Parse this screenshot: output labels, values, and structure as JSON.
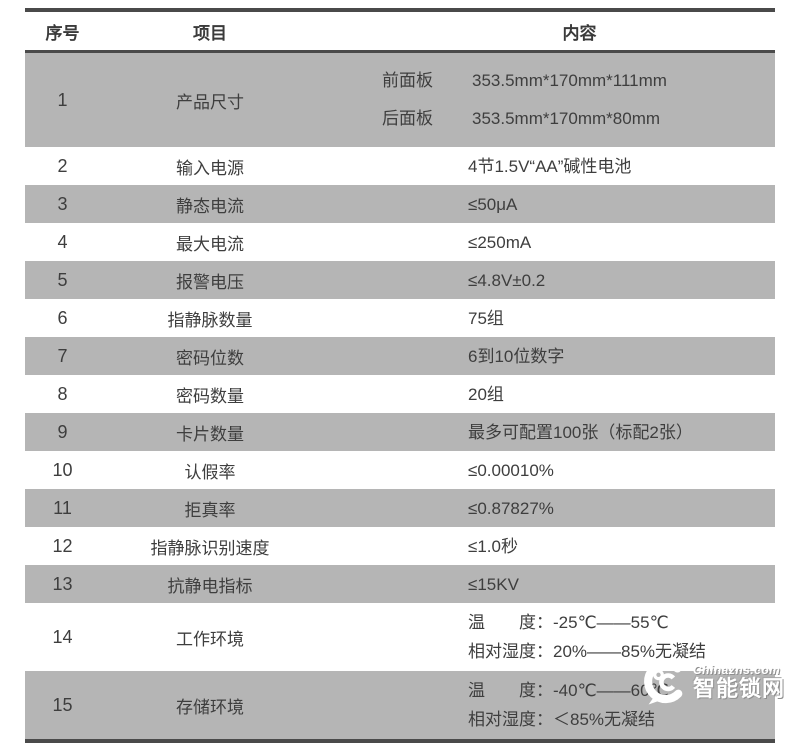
{
  "colors": {
    "stripe_gray": "#b5b5b5",
    "border_dark": "#4a4a4a",
    "text": "#3e3e3e",
    "watermark": "#ffffff"
  },
  "table": {
    "headers": [
      {
        "label": "序号"
      },
      {
        "label": "项目"
      },
      {
        "label": "内容"
      }
    ],
    "rows": [
      {
        "no": "1",
        "item": "产品尺寸",
        "lines": [
          {
            "label": "前面板",
            "value": "353.5mm*170mm*111mm"
          },
          {
            "label": "后面板",
            "value": "353.5mm*170mm*80mm"
          }
        ]
      },
      {
        "no": "2",
        "item": "输入电源",
        "lines": [
          {
            "value": "4节1.5V“AA”碱性电池"
          }
        ]
      },
      {
        "no": "3",
        "item": "静态电流",
        "lines": [
          {
            "value": "≤50μA"
          }
        ]
      },
      {
        "no": "4",
        "item": "最大电流",
        "lines": [
          {
            "value": "≤250mA"
          }
        ]
      },
      {
        "no": "5",
        "item": "报警电压",
        "lines": [
          {
            "value": "≤4.8V±0.2"
          }
        ]
      },
      {
        "no": "6",
        "item": "指静脉数量",
        "lines": [
          {
            "value": "75组"
          }
        ]
      },
      {
        "no": "7",
        "item": "密码位数",
        "lines": [
          {
            "value": "6到10位数字"
          }
        ]
      },
      {
        "no": "8",
        "item": "密码数量",
        "lines": [
          {
            "value": "20组"
          }
        ]
      },
      {
        "no": "9",
        "item": "卡片数量",
        "lines": [
          {
            "value": "最多可配置100张（标配2张）"
          }
        ]
      },
      {
        "no": "10",
        "item": "认假率",
        "lines": [
          {
            "value": "≤0.00010%"
          }
        ]
      },
      {
        "no": "11",
        "item": "拒真率",
        "lines": [
          {
            "value": "≤0.87827%"
          }
        ]
      },
      {
        "no": "12",
        "item": "指静脉识别速度",
        "lines": [
          {
            "value": "≤1.0秒"
          }
        ]
      },
      {
        "no": "13",
        "item": "抗静电指标",
        "lines": [
          {
            "value": "≤15KV"
          }
        ]
      },
      {
        "no": "14",
        "item": "工作环境",
        "lines": [
          {
            "value": "温　　度：-25℃——55℃"
          },
          {
            "value": "相对湿度：20%——85%无凝结"
          }
        ]
      },
      {
        "no": "15",
        "item": "存储环境",
        "lines": [
          {
            "value": "温　　度：-40℃——60℃"
          },
          {
            "value": "相对湿度：＜85%无凝结"
          }
        ]
      }
    ]
  },
  "watermark": {
    "site": "Chinazns.com",
    "name": "智能锁网"
  }
}
